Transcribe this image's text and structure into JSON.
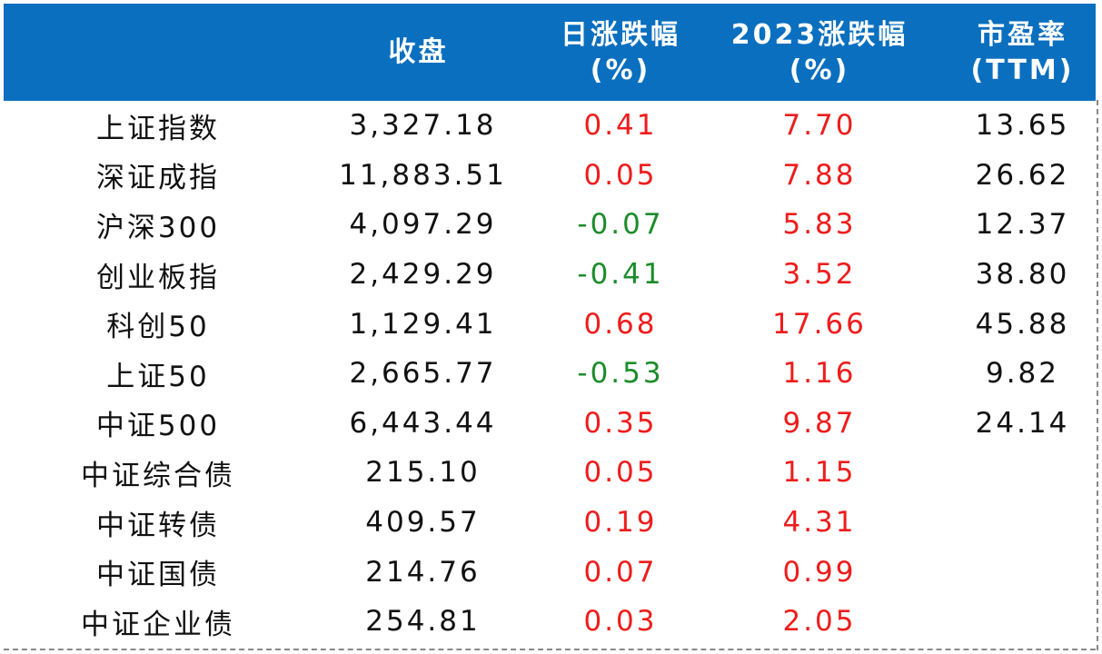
{
  "header": {
    "col_name": "",
    "col_close": "收盘",
    "col_daily_line1": "日涨跌幅",
    "col_daily_line2": "(%)",
    "col_ytd_line1": "2023涨跌幅",
    "col_ytd_line2": "(%)",
    "col_pe_line1": "市盈率",
    "col_pe_line2": "(TTM)"
  },
  "rows": [
    {
      "name": "上证指数",
      "close": "3,327.18",
      "daily": "0.41",
      "daily_dir": "up",
      "ytd": "7.70",
      "pe": "13.65"
    },
    {
      "name": "深证成指",
      "close": "11,883.51",
      "daily": "0.05",
      "daily_dir": "up",
      "ytd": "7.88",
      "pe": "26.62"
    },
    {
      "name": "沪深300",
      "close": "4,097.29",
      "daily": "-0.07",
      "daily_dir": "down",
      "ytd": "5.83",
      "pe": "12.37"
    },
    {
      "name": "创业板指",
      "close": "2,429.29",
      "daily": "-0.41",
      "daily_dir": "down",
      "ytd": "3.52",
      "pe": "38.80"
    },
    {
      "name": "科创50",
      "close": "1,129.41",
      "daily": "0.68",
      "daily_dir": "up",
      "ytd": "17.66",
      "pe": "45.88"
    },
    {
      "name": "上证50",
      "close": "2,665.77",
      "daily": "-0.53",
      "daily_dir": "down",
      "ytd": "1.16",
      "pe": "9.82"
    },
    {
      "name": "中证500",
      "close": "6,443.44",
      "daily": "0.35",
      "daily_dir": "up",
      "ytd": "9.87",
      "pe": "24.14"
    },
    {
      "name": "中证综合债",
      "close": "215.10",
      "daily": "0.05",
      "daily_dir": "up",
      "ytd": "1.15",
      "pe": ""
    },
    {
      "name": "中证转债",
      "close": "409.57",
      "daily": "0.19",
      "daily_dir": "up",
      "ytd": "4.31",
      "pe": ""
    },
    {
      "name": "中证国债",
      "close": "214.76",
      "daily": "0.07",
      "daily_dir": "up",
      "ytd": "0.99",
      "pe": ""
    },
    {
      "name": "中证企业债",
      "close": "254.81",
      "daily": "0.03",
      "daily_dir": "up",
      "ytd": "2.05",
      "pe": ""
    }
  ],
  "colors": {
    "header_bg": "#0a6fbf",
    "up": "#ee1c1c",
    "down": "#1b8c2a"
  }
}
